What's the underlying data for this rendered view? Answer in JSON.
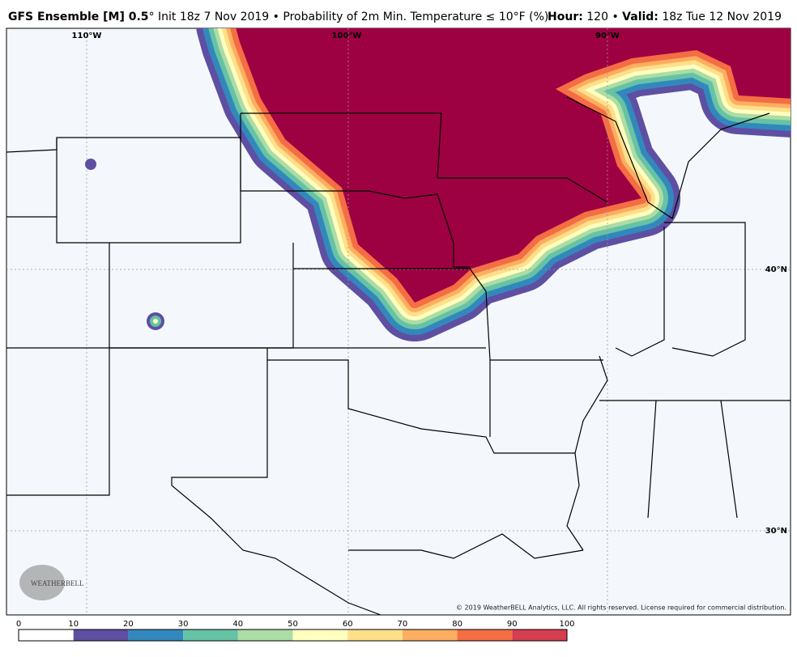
{
  "header": {
    "title_bold": "GFS Ensemble [M] 0.5",
    "title_rest": "° Init 18z 7 Nov 2019 • Probability of 2m Min. Temperature ≤ 10°F (%)",
    "hour_label": "Hour:",
    "hour_value": " 120 • ",
    "valid_label": "Valid:",
    "valid_value": " 18z Tue 12 Nov 2019"
  },
  "map": {
    "lon_labels": [
      "110°W",
      "100°W",
      "90°W"
    ],
    "lat_labels": [
      "40°N",
      "30°N"
    ],
    "logo": "WEATHERBELL",
    "copyright": "© 2019 WeatherBELL Analytics, LLC. All rights reserved. License required for commercial distribution."
  },
  "colorbar": {
    "ticks": [
      0,
      10,
      20,
      30,
      40,
      50,
      60,
      70,
      80,
      90,
      100
    ],
    "colors": [
      "#ffffff",
      "#5e4fa2",
      "#3288bd",
      "#66c2a5",
      "#abdda4",
      "#ffffbf",
      "#fee08b",
      "#fdae61",
      "#f46d43",
      "#d53e4f",
      "#9e0142"
    ]
  }
}
